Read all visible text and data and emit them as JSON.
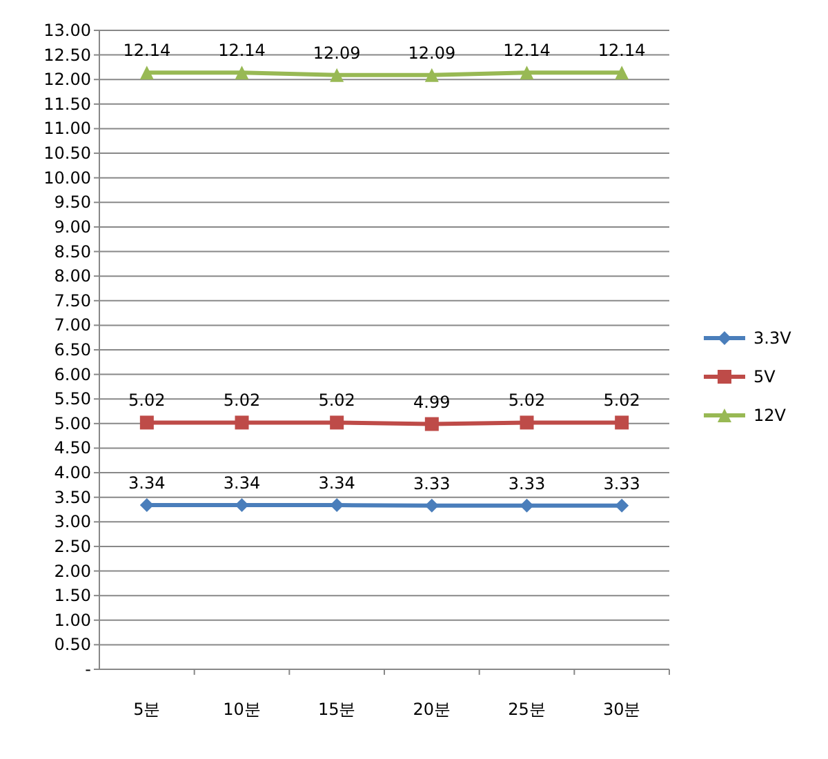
{
  "chart_data": {
    "type": "line",
    "categories": [
      "5분",
      "10분",
      "15분",
      "20분",
      "25분",
      "30분"
    ],
    "series": [
      {
        "name": "3.3V",
        "color": "#4a7ebb",
        "marker": "diamond",
        "values": [
          3.34,
          3.34,
          3.34,
          3.33,
          3.33,
          3.33
        ]
      },
      {
        "name": "5V",
        "color": "#be4b48",
        "marker": "square",
        "values": [
          5.02,
          5.02,
          5.02,
          4.99,
          5.02,
          5.02
        ]
      },
      {
        "name": "12V",
        "color": "#98b954",
        "marker": "triangle",
        "values": [
          12.14,
          12.14,
          12.09,
          12.09,
          12.14,
          12.14
        ]
      }
    ],
    "ylim": [
      0,
      13
    ],
    "yticks": [
      {
        "value": 0,
        "label": "-"
      },
      {
        "value": 0.5,
        "label": "0.50"
      },
      {
        "value": 1,
        "label": "1.00"
      },
      {
        "value": 1.5,
        "label": "1.50"
      },
      {
        "value": 2,
        "label": "2.00"
      },
      {
        "value": 2.5,
        "label": "2.50"
      },
      {
        "value": 3,
        "label": "3.00"
      },
      {
        "value": 3.5,
        "label": "3.50"
      },
      {
        "value": 4,
        "label": "4.00"
      },
      {
        "value": 4.5,
        "label": "4.50"
      },
      {
        "value": 5,
        "label": "5.00"
      },
      {
        "value": 5.5,
        "label": "5.50"
      },
      {
        "value": 6,
        "label": "6.00"
      },
      {
        "value": 6.5,
        "label": "6.50"
      },
      {
        "value": 7,
        "label": "7.00"
      },
      {
        "value": 7.5,
        "label": "7.50"
      },
      {
        "value": 8,
        "label": "8.00"
      },
      {
        "value": 8.5,
        "label": "8.50"
      },
      {
        "value": 9,
        "label": "9.00"
      },
      {
        "value": 9.5,
        "label": "9.50"
      },
      {
        "value": 10,
        "label": "10.00"
      },
      {
        "value": 10.5,
        "label": "10.50"
      },
      {
        "value": 11,
        "label": "11.00"
      },
      {
        "value": 11.5,
        "label": "11.50"
      },
      {
        "value": 12,
        "label": "12.00"
      },
      {
        "value": 12.5,
        "label": "12.50"
      },
      {
        "value": 13,
        "label": "13.00"
      }
    ],
    "grid": "y",
    "legend": "right",
    "data_labels": true
  }
}
